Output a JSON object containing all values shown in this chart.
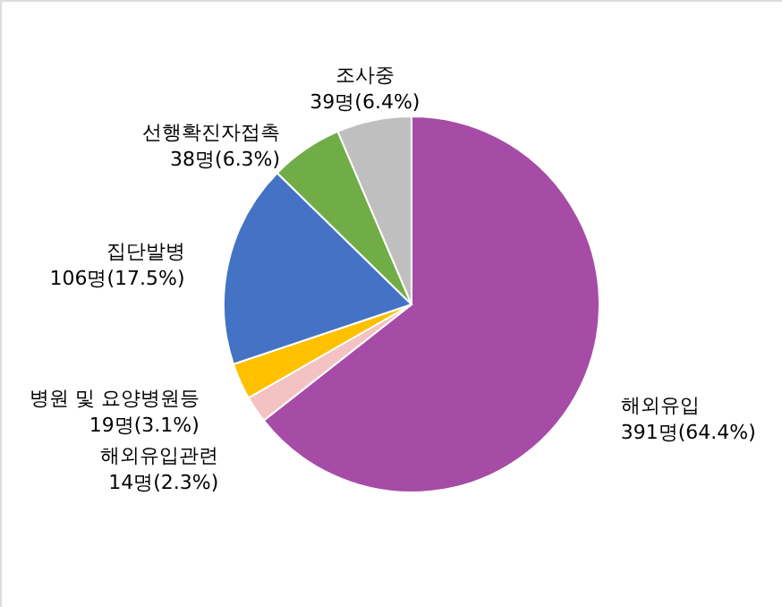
{
  "chart_data": {
    "type": "pie",
    "categories": [
      "해외유입",
      "해외유입관련",
      "병원 및 요양병원등",
      "집단발병",
      "선행확진자접촉",
      "조사중"
    ],
    "values": [
      391,
      14,
      19,
      106,
      38,
      39
    ],
    "colors": [
      "#a64ca6",
      "#f4c2c2",
      "#ffc000",
      "#4472c4",
      "#70ad47",
      "#bfbfbf"
    ],
    "value_labels": [
      "391명(64.4%)",
      "14명(2.3%)",
      "19명(3.1%)",
      "106명(17.5%)",
      "38명(6.3%)",
      "39명(6.4%)"
    ]
  }
}
